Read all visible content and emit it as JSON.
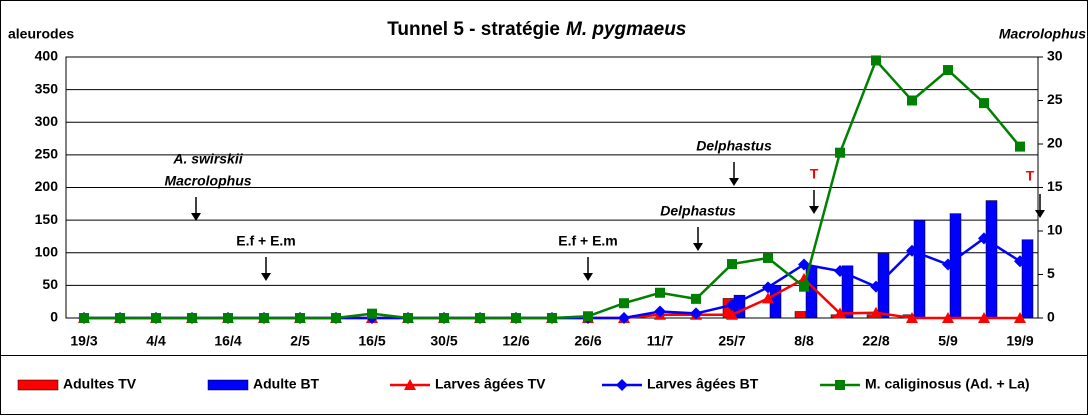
{
  "chart_data": {
    "type": "combo",
    "title": "Tunnel 5  -  stratégie",
    "title_italic": "M. pygmaeus",
    "y_label": "aleurodes",
    "y2_label": "Macrolophus",
    "categories": [
      "19/3",
      null,
      "4/4",
      null,
      "16/4",
      null,
      "2/5",
      null,
      "16/5",
      null,
      "30/5",
      null,
      "12/6",
      null,
      "26/6",
      null,
      "11/7",
      null,
      "25/7",
      null,
      "8/8",
      null,
      "22/8",
      null,
      "5/9",
      null,
      "19/9"
    ],
    "ylim": [
      0,
      400
    ],
    "yticks": [
      0,
      50,
      100,
      150,
      200,
      250,
      300,
      350,
      400
    ],
    "y2lim": [
      0,
      30
    ],
    "y2ticks": [
      0,
      5,
      10,
      15,
      20,
      25,
      30
    ],
    "grid": true,
    "series": [
      {
        "name": "Adultes TV",
        "kind": "bar",
        "color": "#ff0000",
        "values": [
          0,
          0,
          0,
          0,
          0,
          0,
          0,
          0,
          0,
          0,
          0,
          0,
          0,
          0,
          0,
          0,
          0,
          0,
          30,
          0,
          10,
          5,
          5,
          5,
          0,
          0,
          0
        ]
      },
      {
        "name": "Adulte BT",
        "kind": "bar",
        "color": "#0000ff",
        "values": [
          0,
          0,
          0,
          0,
          0,
          0,
          0,
          0,
          0,
          0,
          0,
          0,
          0,
          0,
          0,
          0,
          0,
          0,
          35,
          50,
          80,
          80,
          100,
          150,
          160,
          180,
          120
        ]
      },
      {
        "name": "Larves âgées TV",
        "kind": "line",
        "marker": "triangle",
        "color": "#ff0000",
        "values": [
          0,
          0,
          0,
          0,
          0,
          0,
          0,
          0,
          0,
          0,
          0,
          0,
          0,
          0,
          0,
          0,
          5,
          5,
          5,
          30,
          60,
          7,
          8,
          0,
          0,
          0,
          0
        ]
      },
      {
        "name": "Larves âgées BT",
        "kind": "line",
        "marker": "diamond",
        "color": "#0000ff",
        "values": [
          0,
          0,
          0,
          0,
          0,
          0,
          0,
          0,
          0,
          0,
          0,
          0,
          0,
          0,
          0,
          0,
          10,
          7,
          20,
          47,
          82,
          72,
          48,
          103,
          82,
          122,
          87
        ]
      },
      {
        "name": "M. caliginosus (Ad. + La)",
        "kind": "line",
        "marker": "square",
        "axis": "y2",
        "color": "#008000",
        "values": [
          0,
          0,
          0,
          0,
          0,
          0,
          0,
          0,
          0.5,
          0,
          0,
          0,
          0,
          0,
          0.2,
          1.7,
          2.9,
          2.2,
          6.2,
          6.9,
          3.6,
          19,
          29.6,
          25,
          28.5,
          24.7,
          19.7
        ]
      }
    ],
    "annotations": [
      {
        "lines": [
          "A. swirskii",
          "Macrolophus"
        ],
        "color": "#000000",
        "italic": true
      },
      {
        "lines": [
          "E.f + E.m"
        ],
        "color": "#000000",
        "italic": false
      },
      {
        "lines": [
          "E.f + E.m"
        ],
        "color": "#000000",
        "italic": false
      },
      {
        "lines": [
          "Delphastus"
        ],
        "color": "#000000",
        "italic": true
      },
      {
        "lines": [
          "Delphastus"
        ],
        "color": "#000000",
        "italic": true
      },
      {
        "lines": [
          "T"
        ],
        "color": "#ff0000",
        "italic": false
      },
      {
        "lines": [
          "T"
        ],
        "color": "#ff0000",
        "italic": false
      }
    ]
  }
}
